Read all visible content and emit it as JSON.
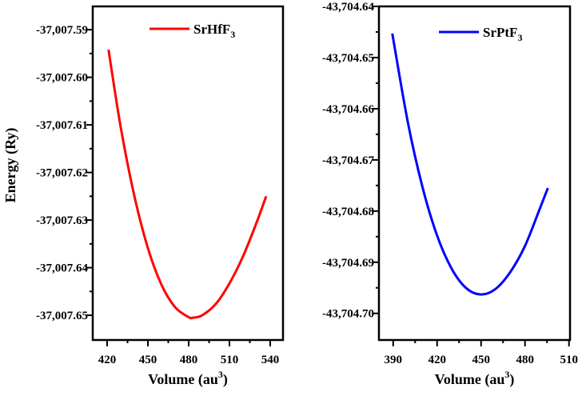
{
  "chart_data": [
    {
      "type": "line",
      "xlabel": "Volume (au",
      "xlabel_sup": "3",
      "xlabel_end": ")",
      "ylabel": "Energy (Ry)",
      "xlim": [
        409.4,
        549.4
      ],
      "ylim": [
        -37007.6552,
        -37007.5851
      ],
      "xticks": [
        420,
        450,
        480,
        510,
        540
      ],
      "xtick_labels": [
        "420",
        "450",
        "480",
        "510",
        "540"
      ],
      "yticks": [
        -37007.59,
        -37007.6,
        -37007.61,
        -37007.62,
        -37007.63,
        -37007.64,
        -37007.65
      ],
      "ytick_labels": [
        "-37,007.59",
        "-37,007.60",
        "-37,007.61",
        "-37,007.62",
        "-37,007.63",
        "-37,007.64",
        "-37,007.65"
      ],
      "grid": false,
      "legend_position": "top-right",
      "series": [
        {
          "name": "SrHfF",
          "name_sub": "3",
          "color": "#ff0000",
          "x": [
            421,
            430,
            440,
            450,
            460,
            470,
            480,
            483.5,
            490,
            500,
            510,
            520,
            530,
            537
          ],
          "y": [
            -37007.5942,
            -37007.6105,
            -37007.6249,
            -37007.6359,
            -37007.6436,
            -37007.6483,
            -37007.6504,
            -37007.6505,
            -37007.65,
            -37007.6476,
            -37007.6433,
            -37007.6376,
            -37007.6305,
            -37007.625
          ]
        }
      ]
    },
    {
      "type": "line",
      "xlabel": "Volume (au",
      "xlabel_sup": "3",
      "xlabel_end": ")",
      "ylabel": "",
      "xlim": [
        380.3,
        510.7
      ],
      "ylim": [
        -43704.7052,
        -43704.64
      ],
      "xticks": [
        390,
        420,
        450,
        480,
        510
      ],
      "xtick_labels": [
        "390",
        "420",
        "450",
        "480",
        "510"
      ],
      "yticks": [
        -43704.64,
        -43704.65,
        -43704.66,
        -43704.67,
        -43704.68,
        -43704.69,
        -43704.7
      ],
      "ytick_labels": [
        "-43,704.64",
        "-43,704.65",
        "-43,704.66",
        "-43,704.67",
        "-43,704.68",
        "-43,704.69",
        "-43,704.70"
      ],
      "grid": false,
      "legend_position": "top-right",
      "series": [
        {
          "name": "SrPtF",
          "name_sub": "3",
          "color": "#0000ff",
          "x": [
            389.4,
            400,
            410,
            420,
            430,
            440,
            450,
            460,
            470,
            480,
            490,
            495.6
          ],
          "y": [
            -43704.6453,
            -43704.6626,
            -43704.6753,
            -43704.6848,
            -43704.6913,
            -43704.6951,
            -43704.6963,
            -43704.6952,
            -43704.6919,
            -43704.6868,
            -43704.6796,
            -43704.6755
          ]
        }
      ]
    }
  ]
}
